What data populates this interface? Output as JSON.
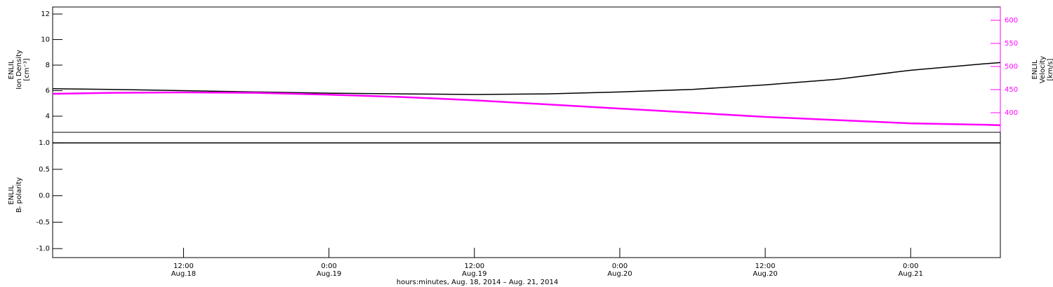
{
  "chart_data": [
    {
      "type": "line",
      "ylabel": [
        "ENLIL",
        "Ion Density",
        "[cm⁻³]"
      ],
      "y2label": [
        "ENLIL",
        "Velocity",
        "[km/s]"
      ],
      "x": [
        1.2,
        6,
        12,
        18,
        24,
        30,
        36,
        42,
        48,
        54,
        60,
        66,
        72,
        78,
        79.4
      ],
      "xlim": [
        1.2,
        79.4
      ],
      "ylim": [
        2.74,
        12.55
      ],
      "yticks": [
        4,
        6,
        8,
        10,
        12
      ],
      "y2lim": [
        357.6,
        628.8
      ],
      "y2ticks": [
        400,
        450,
        500,
        550,
        600
      ],
      "series": [
        {
          "name": "Ion Density",
          "color": "#000000",
          "values": [
            6.15,
            6.1,
            6.0,
            5.9,
            5.8,
            5.75,
            5.7,
            5.75,
            5.9,
            6.1,
            6.45,
            6.9,
            7.6,
            8.1,
            8.2
          ]
        },
        {
          "name": "Velocity",
          "color": "#ff00ff",
          "axis": "y2",
          "values": [
            441,
            443,
            444,
            443,
            439,
            434,
            427,
            418,
            409,
            400,
            391,
            384,
            377,
            374,
            373
          ]
        }
      ]
    },
    {
      "type": "line",
      "ylabel": [
        "ENLIL",
        "Bᵣ polarity"
      ],
      "xlabel": "hours:minutes, Aug. 18, 2014 – Aug. 21, 2014",
      "x": [
        1.2,
        6,
        12,
        18,
        24,
        30,
        36,
        42,
        48,
        54,
        60,
        66,
        72,
        78,
        79.4
      ],
      "xlim": [
        1.2,
        79.4
      ],
      "xticks": [
        {
          "value": 12,
          "label": "12:00",
          "date": "Aug.18"
        },
        {
          "value": 24,
          "label": "0:00",
          "date": "Aug.19"
        },
        {
          "value": 36,
          "label": "12:00",
          "date": "Aug.19"
        },
        {
          "value": 48,
          "label": "0:00",
          "date": "Aug.20"
        },
        {
          "value": 60,
          "label": "12:00",
          "date": "Aug.20"
        },
        {
          "value": 72,
          "label": "0:00",
          "date": "Aug.21"
        }
      ],
      "ylim": [
        -1.17,
        1.2
      ],
      "yticks": [
        {
          "value": -1,
          "label": "-1.0"
        },
        {
          "value": -0.5,
          "label": "-0.5"
        },
        {
          "value": 0,
          "label": "0.0"
        },
        {
          "value": 0.5,
          "label": "0.5"
        },
        {
          "value": 1,
          "label": "1.0"
        }
      ],
      "series": [
        {
          "name": "Br polarity",
          "color": "#000000",
          "values": [
            1,
            1,
            1,
            1,
            1,
            1,
            1,
            1,
            1,
            1,
            1,
            1,
            1,
            1,
            1
          ]
        }
      ]
    }
  ]
}
